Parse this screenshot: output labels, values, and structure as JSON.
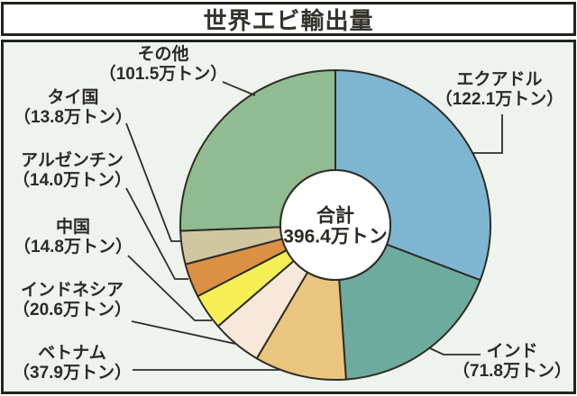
{
  "title": "世界エビ輸出量",
  "chart_data": {
    "type": "pie",
    "donut": true,
    "title": "世界エビ輸出量",
    "unit": "万トン",
    "total_label": "合計",
    "total_value": 396.4,
    "total_value_label": "396.4万トン",
    "start_angle_deg": 0,
    "direction": "clockwise",
    "legend": "none",
    "categories": [
      "エクアドル",
      "インド",
      "ベトナム",
      "インドネシア",
      "中国",
      "アルゼンチン",
      "タイ国",
      "その他"
    ],
    "values": [
      122.1,
      71.8,
      37.9,
      20.6,
      14.8,
      14.0,
      13.8,
      101.5
    ],
    "amount_labels": [
      "（122.1万トン）",
      "（71.8万トン）",
      "（37.9万トン）",
      "（20.6万トン）",
      "（14.8万トン）",
      "（14.0万トン）",
      "（13.8万トン）",
      "（101.5万トン）"
    ],
    "colors": [
      "#7eb6d1",
      "#6dab9e",
      "#eac57d",
      "#f8e8da",
      "#f5ef55",
      "#db9044",
      "#d0c7a2",
      "#91bc92"
    ]
  },
  "colors": {
    "background": "#eef3ed",
    "title_background": "#ffffff",
    "border": "#23231e",
    "outline": "#2e2d26",
    "leader_line": "#2e2d26",
    "text": "#2b2b25",
    "hole": "#ffffff"
  }
}
